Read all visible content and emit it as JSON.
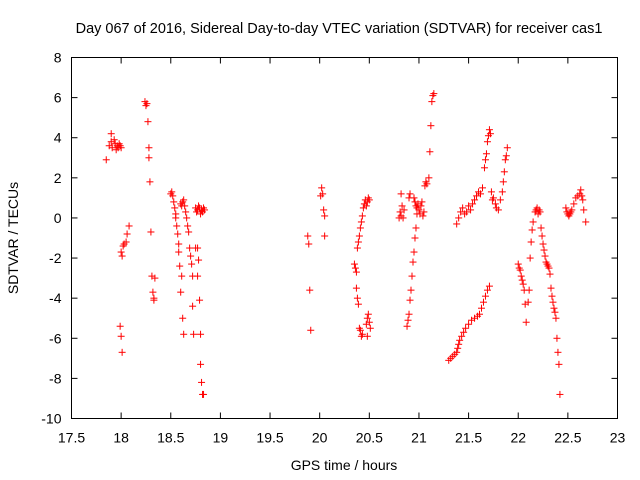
{
  "chart_data": {
    "type": "scatter",
    "title": "Day 067 of 2016, Sidereal Day-to-day VTEC variation (SDTVAR) for receiver cas1",
    "xlabel": "GPS time / hours",
    "ylabel": "SDTVAR / TECUs",
    "xlim": [
      17.5,
      23
    ],
    "ylim": [
      -10,
      8
    ],
    "xticks": [
      "17.5",
      "18",
      "18.5",
      "19",
      "19.5",
      "20",
      "20.5",
      "21",
      "21.5",
      "22",
      "22.5",
      "23"
    ],
    "yticks": [
      "-10",
      "-8",
      "-6",
      "-4",
      "-2",
      "0",
      "2",
      "4",
      "6",
      "8"
    ],
    "grid": false,
    "marker": "+",
    "color": "#ff0000",
    "series": [
      {
        "name": "SDTVAR",
        "points": [
          [
            17.85,
            2.9
          ],
          [
            17.88,
            3.6
          ],
          [
            17.9,
            3.8
          ],
          [
            17.9,
            4.2
          ],
          [
            17.91,
            3.5
          ],
          [
            17.93,
            3.9
          ],
          [
            17.94,
            3.7
          ],
          [
            17.95,
            3.4
          ],
          [
            17.96,
            3.6
          ],
          [
            17.97,
            3.5
          ],
          [
            17.98,
            3.7
          ],
          [
            17.99,
            3.6
          ],
          [
            18.0,
            3.5
          ],
          [
            17.99,
            -5.4
          ],
          [
            18.0,
            -5.9
          ],
          [
            18.01,
            -6.7
          ],
          [
            18.0,
            -1.7
          ],
          [
            18.01,
            -1.9
          ],
          [
            18.02,
            -1.4
          ],
          [
            18.03,
            -1.3
          ],
          [
            18.05,
            -1.2
          ],
          [
            18.06,
            -0.8
          ],
          [
            18.08,
            -0.4
          ],
          [
            18.24,
            5.8
          ],
          [
            18.25,
            5.6
          ],
          [
            18.26,
            5.7
          ],
          [
            18.27,
            4.8
          ],
          [
            18.28,
            3.5
          ],
          [
            18.28,
            3.0
          ],
          [
            18.29,
            1.8
          ],
          [
            18.3,
            -0.7
          ],
          [
            18.31,
            -2.9
          ],
          [
            18.32,
            -3.7
          ],
          [
            18.33,
            -4.0
          ],
          [
            18.33,
            -4.1
          ],
          [
            18.34,
            -3.0
          ],
          [
            18.5,
            1.2
          ],
          [
            18.51,
            1.3
          ],
          [
            18.52,
            1.1
          ],
          [
            18.53,
            0.8
          ],
          [
            18.54,
            0.5
          ],
          [
            18.55,
            0.2
          ],
          [
            18.55,
            0.0
          ],
          [
            18.56,
            -0.4
          ],
          [
            18.57,
            -0.8
          ],
          [
            18.58,
            -1.3
          ],
          [
            18.58,
            -1.7
          ],
          [
            18.59,
            -2.4
          ],
          [
            18.6,
            -3.7
          ],
          [
            18.61,
            -2.9
          ],
          [
            18.6,
            0.7
          ],
          [
            18.61,
            0.6
          ],
          [
            18.62,
            0.8
          ],
          [
            18.63,
            0.9
          ],
          [
            18.64,
            0.6
          ],
          [
            18.65,
            0.3
          ],
          [
            18.66,
            0.0
          ],
          [
            18.67,
            -0.4
          ],
          [
            18.68,
            -0.7
          ],
          [
            18.69,
            -1.5
          ],
          [
            18.7,
            -1.9
          ],
          [
            18.71,
            -2.3
          ],
          [
            18.72,
            -2.9
          ],
          [
            18.72,
            -4.4
          ],
          [
            18.62,
            -5.0
          ],
          [
            18.63,
            -5.8
          ],
          [
            18.73,
            -5.8
          ],
          [
            18.75,
            -1.5
          ],
          [
            18.77,
            -1.5
          ],
          [
            18.77,
            -2.9
          ],
          [
            18.78,
            -2.1
          ],
          [
            18.79,
            -4.1
          ],
          [
            18.8,
            -5.8
          ],
          [
            18.8,
            -7.3
          ],
          [
            18.81,
            -8.2
          ],
          [
            18.82,
            -8.8
          ],
          [
            18.83,
            -8.8
          ],
          [
            18.75,
            0.5
          ],
          [
            18.76,
            0.3
          ],
          [
            18.77,
            0.4
          ],
          [
            18.78,
            0.6
          ],
          [
            18.79,
            0.5
          ],
          [
            18.8,
            0.2
          ],
          [
            18.81,
            0.4
          ],
          [
            18.82,
            0.3
          ],
          [
            18.83,
            0.5
          ],
          [
            18.84,
            0.4
          ],
          [
            19.88,
            -0.9
          ],
          [
            19.89,
            -1.3
          ],
          [
            19.9,
            -3.6
          ],
          [
            19.91,
            -5.6
          ],
          [
            20.01,
            1.1
          ],
          [
            20.02,
            1.5
          ],
          [
            20.03,
            1.2
          ],
          [
            20.04,
            0.4
          ],
          [
            20.05,
            0.1
          ],
          [
            20.05,
            -0.9
          ],
          [
            20.35,
            -2.3
          ],
          [
            20.36,
            -2.5
          ],
          [
            20.37,
            -2.7
          ],
          [
            20.37,
            -3.5
          ],
          [
            20.38,
            -1.5
          ],
          [
            20.38,
            -4.0
          ],
          [
            20.39,
            -1.2
          ],
          [
            20.39,
            -4.3
          ],
          [
            20.4,
            -0.9
          ],
          [
            20.4,
            -5.5
          ],
          [
            20.41,
            -0.5
          ],
          [
            20.41,
            -5.6
          ],
          [
            20.42,
            -0.2
          ],
          [
            20.42,
            -5.9
          ],
          [
            20.43,
            0.1
          ],
          [
            20.43,
            -5.8
          ],
          [
            20.44,
            0.5
          ],
          [
            20.45,
            0.7
          ],
          [
            20.46,
            0.9
          ],
          [
            20.47,
            0.6
          ],
          [
            20.48,
            0.8
          ],
          [
            20.49,
            1.0
          ],
          [
            20.5,
            0.9
          ],
          [
            20.47,
            -5.3
          ],
          [
            20.48,
            -5.0
          ],
          [
            20.49,
            -4.8
          ],
          [
            20.5,
            -5.2
          ],
          [
            20.51,
            -5.5
          ],
          [
            20.48,
            -5.9
          ],
          [
            20.8,
            0.0
          ],
          [
            20.81,
            0.3
          ],
          [
            20.82,
            0.1
          ],
          [
            20.82,
            1.2
          ],
          [
            20.83,
            0.6
          ],
          [
            20.84,
            0.0
          ],
          [
            20.85,
            0.4
          ],
          [
            20.88,
            -5.4
          ],
          [
            20.89,
            -5.1
          ],
          [
            20.9,
            -4.8
          ],
          [
            20.9,
            1.0
          ],
          [
            20.91,
            1.2
          ],
          [
            20.91,
            -4.1
          ],
          [
            20.92,
            -3.6
          ],
          [
            20.93,
            -2.9
          ],
          [
            20.94,
            -2.2
          ],
          [
            20.95,
            -1.7
          ],
          [
            20.96,
            -1.0
          ],
          [
            20.97,
            -0.5
          ],
          [
            20.98,
            0.2
          ],
          [
            20.95,
            1.0
          ],
          [
            20.96,
            0.8
          ],
          [
            20.97,
            0.6
          ],
          [
            20.98,
            0.5
          ],
          [
            20.99,
            0.7
          ],
          [
            21.0,
            0.4
          ],
          [
            21.01,
            0.2
          ],
          [
            21.02,
            0.6
          ],
          [
            21.03,
            0.8
          ],
          [
            21.04,
            0.1
          ],
          [
            21.05,
            0.3
          ],
          [
            21.06,
            1.6
          ],
          [
            21.07,
            1.8
          ],
          [
            21.08,
            1.7
          ],
          [
            21.1,
            2.0
          ],
          [
            21.11,
            3.3
          ],
          [
            21.12,
            4.6
          ],
          [
            21.13,
            5.8
          ],
          [
            21.14,
            6.1
          ],
          [
            21.15,
            6.2
          ],
          [
            21.3,
            -7.1
          ],
          [
            21.32,
            -7.0
          ],
          [
            21.34,
            -6.9
          ],
          [
            21.36,
            -6.8
          ],
          [
            21.38,
            -6.7
          ],
          [
            21.39,
            -6.5
          ],
          [
            21.4,
            -6.3
          ],
          [
            21.41,
            -6.1
          ],
          [
            21.43,
            -5.9
          ],
          [
            21.45,
            -5.7
          ],
          [
            21.47,
            -5.5
          ],
          [
            21.5,
            -5.3
          ],
          [
            21.53,
            -5.1
          ],
          [
            21.56,
            -5.0
          ],
          [
            21.59,
            -4.9
          ],
          [
            21.61,
            -4.8
          ],
          [
            21.63,
            -4.5
          ],
          [
            21.65,
            -4.2
          ],
          [
            21.67,
            -3.9
          ],
          [
            21.69,
            -3.6
          ],
          [
            21.71,
            -3.4
          ],
          [
            21.38,
            -0.3
          ],
          [
            21.4,
            0.0
          ],
          [
            21.42,
            0.3
          ],
          [
            21.44,
            0.5
          ],
          [
            21.46,
            0.2
          ],
          [
            21.48,
            0.3
          ],
          [
            21.5,
            0.6
          ],
          [
            21.52,
            0.4
          ],
          [
            21.54,
            0.7
          ],
          [
            21.56,
            0.9
          ],
          [
            21.58,
            1.1
          ],
          [
            21.6,
            1.3
          ],
          [
            21.62,
            1.2
          ],
          [
            21.64,
            1.5
          ],
          [
            21.66,
            2.5
          ],
          [
            21.67,
            2.9
          ],
          [
            21.68,
            3.2
          ],
          [
            21.69,
            3.8
          ],
          [
            21.7,
            4.1
          ],
          [
            21.71,
            4.4
          ],
          [
            21.72,
            4.2
          ],
          [
            21.73,
            1.3
          ],
          [
            21.74,
            0.9
          ],
          [
            21.75,
            1.0
          ],
          [
            21.77,
            0.7
          ],
          [
            21.78,
            0.5
          ],
          [
            21.8,
            0.4
          ],
          [
            21.82,
            0.9
          ],
          [
            21.84,
            1.3
          ],
          [
            21.85,
            1.8
          ],
          [
            21.86,
            2.3
          ],
          [
            21.87,
            2.9
          ],
          [
            21.88,
            3.1
          ],
          [
            21.89,
            3.5
          ],
          [
            22.0,
            -2.3
          ],
          [
            22.01,
            -2.5
          ],
          [
            22.02,
            -2.6
          ],
          [
            22.03,
            -2.9
          ],
          [
            22.04,
            -3.1
          ],
          [
            22.05,
            -3.3
          ],
          [
            22.06,
            -3.6
          ],
          [
            22.07,
            -4.3
          ],
          [
            22.08,
            -5.2
          ],
          [
            22.1,
            -4.2
          ],
          [
            22.11,
            -3.6
          ],
          [
            22.12,
            -2.0
          ],
          [
            22.13,
            -1.2
          ],
          [
            22.14,
            -0.6
          ],
          [
            22.15,
            -0.2
          ],
          [
            22.17,
            0.3
          ],
          [
            22.18,
            0.4
          ],
          [
            22.19,
            0.5
          ],
          [
            22.2,
            0.2
          ],
          [
            22.21,
            0.4
          ],
          [
            22.22,
            0.3
          ],
          [
            22.23,
            -0.5
          ],
          [
            22.24,
            -0.9
          ],
          [
            22.25,
            -1.3
          ],
          [
            22.26,
            -1.6
          ],
          [
            22.27,
            -1.9
          ],
          [
            22.28,
            -2.2
          ],
          [
            22.29,
            -2.3
          ],
          [
            22.3,
            -2.4
          ],
          [
            22.31,
            -2.5
          ],
          [
            22.32,
            -2.8
          ],
          [
            22.33,
            -3.5
          ],
          [
            22.34,
            -3.9
          ],
          [
            22.35,
            -4.2
          ],
          [
            22.36,
            -4.5
          ],
          [
            22.37,
            -4.7
          ],
          [
            22.38,
            -5.0
          ],
          [
            22.39,
            -6.0
          ],
          [
            22.4,
            -6.7
          ],
          [
            22.41,
            -7.3
          ],
          [
            22.42,
            -8.8
          ],
          [
            22.48,
            0.5
          ],
          [
            22.49,
            0.3
          ],
          [
            22.5,
            0.2
          ],
          [
            22.51,
            0.1
          ],
          [
            22.52,
            0.2
          ],
          [
            22.53,
            0.3
          ],
          [
            22.54,
            0.4
          ],
          [
            22.56,
            0.7
          ],
          [
            22.58,
            1.0
          ],
          [
            22.6,
            1.1
          ],
          [
            22.62,
            1.2
          ],
          [
            22.63,
            1.4
          ],
          [
            22.64,
            1.1
          ],
          [
            22.65,
            0.9
          ],
          [
            22.66,
            0.4
          ],
          [
            22.68,
            -0.2
          ]
        ]
      }
    ]
  }
}
